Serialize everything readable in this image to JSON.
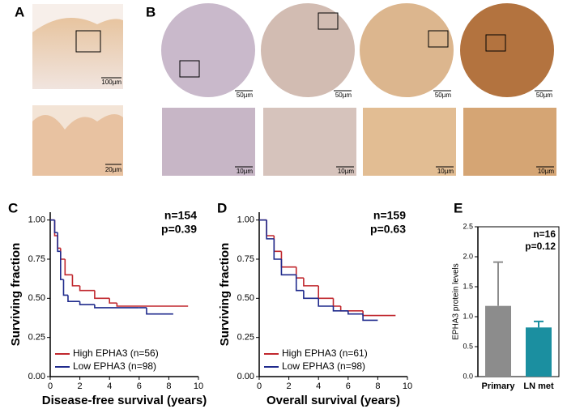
{
  "images": {
    "A": {
      "label": "A",
      "scale_bars": [
        "100µm",
        "20µm"
      ]
    },
    "B": {
      "label": "B",
      "scale_bars": [
        "50µm",
        "50µm",
        "50µm",
        "50µm",
        "10µm",
        "10µm",
        "10µm",
        "10µm"
      ]
    }
  },
  "chart_data": [
    {
      "type": "line",
      "panel": "C",
      "xlabel": "Disease-free survival (years)",
      "ylabel": "Surviving fraction",
      "annotations": [
        "n=154",
        "p=0.39"
      ],
      "xlim": [
        0,
        10
      ],
      "xticks": [
        0,
        2,
        4,
        6,
        8,
        10
      ],
      "ylim": [
        0,
        1.05
      ],
      "yticks": [
        {
          "value": 0,
          "label": "0.00"
        },
        {
          "value": 0.25,
          "label": "0.25"
        },
        {
          "value": 0.5,
          "label": "0.50"
        },
        {
          "value": 0.75,
          "label": "0.75"
        },
        {
          "value": 1,
          "label": "1.00"
        }
      ],
      "series": [
        {
          "name": "High EPHA3 (n=56)",
          "color": "#c0272d",
          "x": [
            0,
            0.3,
            0.5,
            0.7,
            1,
            1.5,
            2,
            3,
            4,
            4.5,
            9.3
          ],
          "values": [
            1,
            0.9,
            0.82,
            0.75,
            0.65,
            0.58,
            0.55,
            0.5,
            0.47,
            0.45,
            0.45
          ]
        },
        {
          "name": "Low EPHA3 (n=98)",
          "color": "#1f2a8c",
          "x": [
            0,
            0.3,
            0.5,
            0.7,
            0.9,
            1.2,
            2,
            3,
            6,
            6.5,
            8.3
          ],
          "values": [
            1,
            0.92,
            0.8,
            0.62,
            0.52,
            0.48,
            0.46,
            0.44,
            0.44,
            0.4,
            0.4
          ]
        }
      ]
    },
    {
      "type": "line",
      "panel": "D",
      "xlabel": "Overall survival (years)",
      "ylabel": "Surviving fraction",
      "annotations": [
        "n=159",
        "p=0.63"
      ],
      "xlim": [
        0,
        10
      ],
      "xticks": [
        0,
        2,
        4,
        6,
        8,
        10
      ],
      "ylim": [
        0,
        1.05
      ],
      "yticks": [
        {
          "value": 0,
          "label": "0.00"
        },
        {
          "value": 0.25,
          "label": "0.25"
        },
        {
          "value": 0.5,
          "label": "0.50"
        },
        {
          "value": 0.75,
          "label": "0.75"
        },
        {
          "value": 1,
          "label": "1.00"
        }
      ],
      "series": [
        {
          "name": "High EPHA3 (n=61)",
          "color": "#c0272d",
          "x": [
            0,
            0.5,
            1,
            1.5,
            2.5,
            3,
            4,
            5,
            5.5,
            7,
            9.2
          ],
          "values": [
            1,
            0.9,
            0.8,
            0.7,
            0.63,
            0.58,
            0.5,
            0.45,
            0.42,
            0.39,
            0.39
          ]
        },
        {
          "name": "Low EPHA3 (n=98)",
          "color": "#1f2a8c",
          "x": [
            0,
            0.5,
            1,
            1.5,
            2.5,
            3,
            4,
            5,
            6,
            7,
            8
          ],
          "values": [
            1,
            0.88,
            0.75,
            0.65,
            0.55,
            0.5,
            0.45,
            0.42,
            0.4,
            0.36,
            0.36
          ]
        }
      ]
    },
    {
      "type": "bar",
      "panel": "E",
      "ylabel": "EPHA3 protein levels",
      "annotations": [
        "n=16",
        "p=0.12"
      ],
      "categories": [
        "Primary",
        "LN met"
      ],
      "values": [
        1.18,
        0.82
      ],
      "errors": [
        0.73,
        0.1
      ],
      "colors": [
        "#8c8c8c",
        "#1b8fa0"
      ],
      "ylim": [
        0,
        2.5
      ],
      "yticks": [
        {
          "value": 0,
          "label": "0.0"
        },
        0.5,
        {
          "value": 1,
          "label": "1.0"
        },
        1.5,
        {
          "value": 2,
          "label": "2.0"
        },
        2.5
      ]
    }
  ]
}
